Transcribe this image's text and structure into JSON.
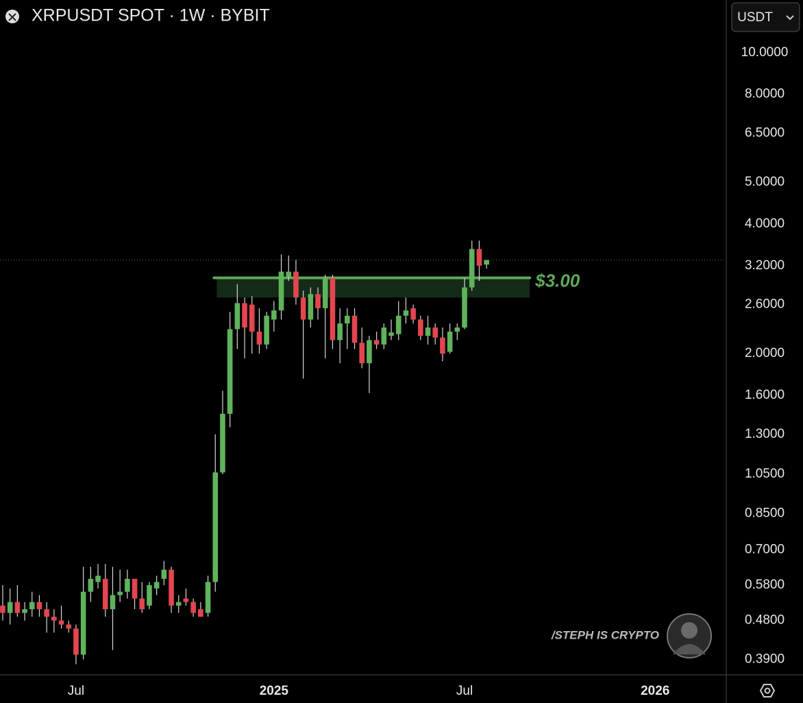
{
  "header": {
    "title": "XRPUSDT SPOT · 1W · BYBIT",
    "currency": "USDT"
  },
  "watermark": "/STEPH IS CRYPTO",
  "chart_data": {
    "type": "candlestick",
    "log_scale": true,
    "up_color": "#5fb35c",
    "down_color": "#e2464f",
    "series": {
      "open": [
        0.52,
        0.5,
        0.53,
        0.5,
        0.51,
        0.53,
        0.51,
        0.49,
        0.48,
        0.47,
        0.46,
        0.4,
        0.56,
        0.59,
        0.6,
        0.51,
        0.55,
        0.56,
        0.6,
        0.54,
        0.52,
        0.57,
        0.6,
        0.63,
        0.52,
        0.54,
        0.53,
        0.51,
        0.5,
        0.59,
        1.06,
        1.45,
        2.28,
        2.62,
        2.6,
        2.25,
        2.1,
        2.4,
        2.52,
        3.02,
        3.1,
        2.7,
        2.4,
        2.75,
        2.55,
        3.0,
        2.15,
        2.35,
        2.45,
        2.12,
        1.9,
        2.15,
        2.1,
        2.2,
        2.22,
        2.45,
        2.55,
        2.4,
        2.2,
        2.3,
        2.18,
        2.02,
        2.25,
        2.3,
        2.85,
        3.5,
        3.22
      ],
      "high": [
        0.58,
        0.57,
        0.58,
        0.53,
        0.56,
        0.55,
        0.53,
        0.51,
        0.52,
        0.48,
        0.47,
        0.64,
        0.64,
        0.65,
        0.65,
        0.64,
        0.63,
        0.63,
        0.6,
        0.59,
        0.59,
        0.61,
        0.66,
        0.64,
        0.55,
        0.57,
        0.54,
        0.53,
        0.61,
        1.3,
        1.64,
        2.5,
        2.9,
        2.7,
        2.72,
        2.55,
        2.5,
        2.65,
        3.4,
        3.38,
        3.3,
        2.8,
        2.85,
        2.85,
        3.05,
        3.05,
        2.55,
        2.55,
        2.55,
        2.3,
        2.2,
        2.25,
        2.35,
        2.4,
        2.65,
        2.7,
        2.6,
        2.45,
        2.45,
        2.35,
        2.3,
        2.35,
        2.35,
        3.0,
        3.66,
        3.66,
        3.3
      ],
      "low": [
        0.48,
        0.47,
        0.49,
        0.48,
        0.49,
        0.49,
        0.45,
        0.45,
        0.46,
        0.45,
        0.38,
        0.39,
        0.53,
        0.57,
        0.49,
        0.41,
        0.53,
        0.54,
        0.51,
        0.5,
        0.51,
        0.55,
        0.58,
        0.5,
        0.5,
        0.52,
        0.49,
        0.49,
        0.49,
        0.56,
        1.05,
        1.35,
        2.05,
        1.95,
        2.0,
        2.0,
        2.05,
        2.25,
        2.4,
        2.95,
        2.6,
        1.75,
        2.3,
        2.4,
        1.95,
        2.05,
        1.9,
        2.05,
        2.05,
        1.85,
        1.62,
        2.05,
        2.05,
        2.15,
        2.15,
        2.35,
        2.35,
        2.15,
        2.1,
        2.1,
        1.92,
        2.0,
        2.15,
        2.28,
        2.8,
        2.95,
        3.15
      ],
      "close": [
        0.5,
        0.53,
        0.5,
        0.51,
        0.53,
        0.51,
        0.49,
        0.48,
        0.47,
        0.46,
        0.4,
        0.56,
        0.6,
        0.61,
        0.51,
        0.55,
        0.56,
        0.6,
        0.54,
        0.51,
        0.58,
        0.59,
        0.63,
        0.52,
        0.53,
        0.53,
        0.5,
        0.49,
        0.59,
        1.06,
        1.45,
        2.28,
        2.62,
        2.3,
        2.25,
        2.1,
        2.45,
        2.52,
        3.1,
        3.1,
        2.7,
        2.4,
        2.75,
        2.55,
        3.0,
        2.15,
        2.35,
        2.45,
        2.12,
        1.9,
        2.15,
        2.1,
        2.3,
        2.24,
        2.45,
        2.52,
        2.4,
        2.2,
        2.3,
        2.18,
        2.0,
        2.25,
        2.3,
        2.85,
        3.5,
        3.2,
        3.3
      ]
    },
    "xlim": [
      -0.37,
      98.7
    ],
    "xticks": [
      {
        "value": 10,
        "label": "Jul"
      },
      {
        "value": 37,
        "label": "2025"
      },
      {
        "value": 63,
        "label": "Jul"
      },
      {
        "value": 89,
        "label": "2026"
      }
    ],
    "ylim": [
      0.359,
      13.25
    ],
    "yticks": [
      {
        "value": 10,
        "label": "10.0000"
      },
      {
        "value": 8,
        "label": "8.0000"
      },
      {
        "value": 6.5,
        "label": "6.5000"
      },
      {
        "value": 5,
        "label": "5.0000"
      },
      {
        "value": 4,
        "label": "4.0000"
      },
      {
        "value": 3.2,
        "label": "3.2000"
      },
      {
        "value": 2.6,
        "label": "2.6000"
      },
      {
        "value": 2,
        "label": "2.0000"
      },
      {
        "value": 1.6,
        "label": "1.6000"
      },
      {
        "value": 1.3,
        "label": "1.3000"
      },
      {
        "value": 1.05,
        "label": "1.0500"
      },
      {
        "value": 0.85,
        "label": "0.8500"
      },
      {
        "value": 0.7,
        "label": "0.7000"
      },
      {
        "value": 0.58,
        "label": "0.5800"
      },
      {
        "value": 0.48,
        "label": "0.4800"
      },
      {
        "value": 0.39,
        "label": "0.3900"
      }
    ],
    "annotations": [
      {
        "label": "$3.00",
        "value": 3,
        "zone": [
          2.7,
          3
        ],
        "xrange": [
          29.2,
          71.9
        ],
        "color": "#5fa85a"
      }
    ]
  }
}
